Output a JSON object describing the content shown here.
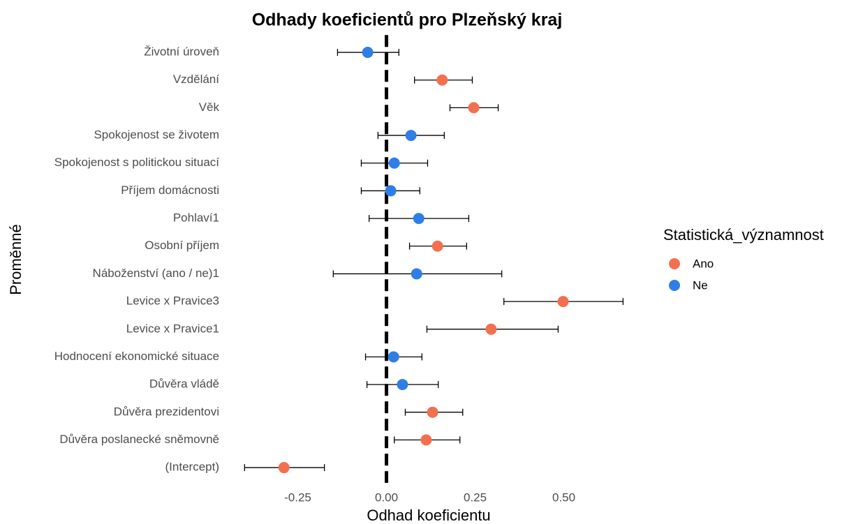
{
  "chart_data": {
    "type": "errorbar",
    "title": "Odhady koeficientů pro Plzeňský kraj",
    "x_label": "Odhad koeficientu",
    "y_label": "Proměnné",
    "legend_title": "Statistická_významnost",
    "legend_position": "right",
    "xintercept": 0,
    "categories": [
      "Životní úroveň",
      "Vzdělání",
      "Věk",
      "Spokojenost se životem",
      "Spokojenost s politickou situací",
      "Příjem domácnosti",
      "Pohlaví1",
      "Osobní příjem",
      "Náboženství (ano / ne)1",
      "Levice x Pravice3",
      "Levice x Pravice1",
      "Hodnocení ekonomické situace",
      "Důvěra vládě",
      "Důvěra prezidentovi",
      "Důvěra poslanecké sněmovně",
      "(Intercept)"
    ],
    "series": [
      {
        "name": "Ano",
        "color": "#f2704f",
        "values": [
          null,
          0.157,
          0.246,
          null,
          null,
          null,
          null,
          0.144,
          null,
          0.498,
          0.295,
          null,
          null,
          0.13,
          0.112,
          -0.289
        ],
        "lower": [
          null,
          0.079,
          0.179,
          null,
          null,
          null,
          null,
          0.065,
          null,
          0.331,
          0.114,
          null,
          null,
          0.053,
          0.022,
          -0.4
        ],
        "upper": [
          null,
          0.242,
          0.315,
          null,
          null,
          null,
          null,
          0.226,
          null,
          0.667,
          0.484,
          null,
          null,
          0.215,
          0.207,
          -0.175
        ]
      },
      {
        "name": "Ne",
        "color": "#2f7ee8",
        "values": [
          -0.053,
          null,
          null,
          0.069,
          0.022,
          0.012,
          0.091,
          null,
          0.085,
          null,
          null,
          0.02,
          0.045,
          null,
          null,
          null
        ],
        "lower": [
          -0.138,
          null,
          null,
          -0.024,
          -0.071,
          -0.071,
          -0.049,
          null,
          -0.15,
          null,
          null,
          -0.059,
          -0.055,
          null,
          null,
          null
        ],
        "upper": [
          0.035,
          null,
          null,
          0.163,
          0.116,
          0.094,
          0.232,
          null,
          0.325,
          null,
          null,
          0.1,
          0.146,
          null,
          null,
          null
        ]
      }
    ],
    "xlim": [
      -0.44,
      0.68
    ],
    "xticks": [
      {
        "value": -0.25,
        "label": "-0.25"
      },
      {
        "value": 0,
        "label": "0.00"
      },
      {
        "value": 0.25,
        "label": "0.25"
      },
      {
        "value": 0.5,
        "label": "0.50"
      }
    ],
    "grid": false
  }
}
